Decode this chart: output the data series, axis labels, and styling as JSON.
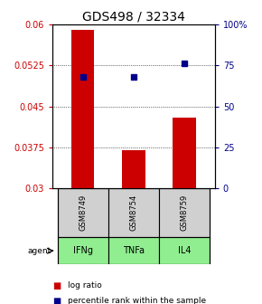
{
  "title": "GDS498 / 32334",
  "samples": [
    "GSM8749",
    "GSM8754",
    "GSM8759"
  ],
  "agents": [
    "IFNg",
    "TNFa",
    "IL4"
  ],
  "log_ratio": [
    0.059,
    0.037,
    0.043
  ],
  "percentile_rank_pct": [
    68,
    68,
    76
  ],
  "bar_color": "#cc0000",
  "dot_color": "#00008b",
  "ylim_left": [
    0.03,
    0.06
  ],
  "yticks_left": [
    0.03,
    0.0375,
    0.045,
    0.0525,
    0.06
  ],
  "ytick_labels_left": [
    "0.03",
    "0.0375",
    "0.045",
    "0.0525",
    "0.06"
  ],
  "yticks_right": [
    0,
    25,
    50,
    75,
    100
  ],
  "ytick_labels_right": [
    "0",
    "25",
    "50",
    "75",
    "100%"
  ],
  "ylim_right": [
    0,
    100
  ],
  "bar_baseline": 0.03,
  "sample_bg": "#d0d0d0",
  "agent_bg": "#90ee90",
  "title_fontsize": 10,
  "tick_fontsize": 7,
  "bar_width": 0.45
}
